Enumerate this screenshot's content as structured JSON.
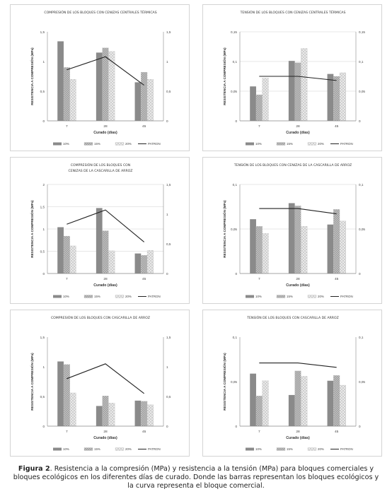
{
  "caption": {
    "label": "Figura 2",
    "text": ". Resistencia a la compresión (MPa) y resistencia a la tensión (MPa) para bloques comerciales y bloques ecológicos en los diferentes días de curado. Donde las barras representan los bloques ecológicos y la curva representa el bloque comercial."
  },
  "chart_data": [
    {
      "type": "bar",
      "title": "COMPRESIÓN DE LOS BLOQUES CON CENIZAS CENTRALES TÉRMICAS",
      "xlabel": "Curado (días)",
      "ylabel": "RESISTENCIA A COMPRESIÓN (MPa)",
      "categories": [
        "7",
        "28",
        "45"
      ],
      "ylim": [
        0,
        1.5
      ],
      "yticks": [
        "0",
        "0,5",
        "1",
        "1,5"
      ],
      "y2ticks": [
        "0",
        "0,5",
        "1",
        "1,5"
      ],
      "grid": false,
      "series": [
        {
          "name": "10%",
          "values": [
            1.34,
            1.15,
            0.65
          ]
        },
        {
          "name": "15%",
          "values": [
            0.9,
            1.23,
            0.82
          ]
        },
        {
          "name": "20%",
          "values": [
            0.7,
            1.17,
            0.7
          ]
        }
      ],
      "line": {
        "name": "PATRON",
        "values": [
          0.86,
          1.08,
          0.6
        ]
      },
      "legend": "bottom"
    },
    {
      "type": "bar",
      "title": "TENSIÓN DE LOS BLOQUES CON CENIZAS CENTRALES TÉRMICAS",
      "xlabel": "Curado (días)",
      "ylabel": "RESISTENCIA A COMPRESIÓN (MPa)",
      "categories": [
        "7",
        "28",
        "45"
      ],
      "ylim": [
        0,
        0.15
      ],
      "yticks": [
        "0",
        "0,05",
        "0,1",
        "0,15"
      ],
      "y2ticks": [
        "0",
        "0,05",
        "0,1",
        "0,15"
      ],
      "grid": true,
      "series": [
        {
          "name": "10%",
          "values": [
            0.058,
            0.101,
            0.079
          ]
        },
        {
          "name": "15%",
          "values": [
            0.044,
            0.098,
            0.075
          ]
        },
        {
          "name": "20%",
          "values": [
            0.072,
            0.122,
            0.081
          ]
        }
      ],
      "line": {
        "name": "PATRON",
        "values": [
          0.075,
          0.075,
          0.068
        ]
      },
      "legend": "bottom"
    },
    {
      "type": "bar",
      "title": "COMPRESIÓN DE LOS BLOQUES CON CENIZAS DE LA CASCARILLA DE ARROZ",
      "xlabel": "Curado (días)",
      "ylabel": "RESISTENCIA A COMPRESIÓN (MPa)",
      "categories": [
        "7",
        "28",
        "45"
      ],
      "ylim": [
        0,
        2
      ],
      "yticks": [
        "0",
        "0,5",
        "1",
        "1,5",
        "2"
      ],
      "y2lim": [
        0,
        1.5
      ],
      "y2ticks": [
        "0",
        "0,5",
        "1",
        "1,5"
      ],
      "grid": true,
      "series": [
        {
          "name": "10%",
          "values": [
            1.04,
            1.47,
            0.45
          ]
        },
        {
          "name": "15%",
          "values": [
            0.84,
            0.96,
            0.41
          ]
        },
        {
          "name": "20%",
          "values": [
            0.62,
            0.51,
            0.52
          ]
        }
      ],
      "line": {
        "name": "PATRON",
        "values": [
          0.83,
          1.07,
          0.53
        ]
      },
      "legend": "bottom"
    },
    {
      "type": "bar",
      "title": "TENSIÓN DE LOS BLOQUES CON CENIZAS DE LA CASCARILLA DE ARROZ",
      "xlabel": "Curado (días)",
      "ylabel": "RESISTENCIA A COMPRESIÓN (MPa)",
      "categories": [
        "7",
        "28",
        "45"
      ],
      "ylim": [
        0,
        0.1
      ],
      "yticks": [
        "0",
        "0,05",
        "0,1"
      ],
      "y2ticks": [
        "0",
        "0,05",
        "0,1"
      ],
      "grid": true,
      "series": [
        {
          "name": "10%",
          "values": [
            0.061,
            0.079,
            0.055
          ]
        },
        {
          "name": "15%",
          "values": [
            0.053,
            0.076,
            0.072
          ]
        },
        {
          "name": "20%",
          "values": [
            0.045,
            0.053,
            0.059
          ]
        }
      ],
      "line": {
        "name": "PATRON",
        "values": [
          0.073,
          0.073,
          0.067
        ]
      },
      "legend": "bottom"
    },
    {
      "type": "bar",
      "title": "COMPRESIÓN DE LOS BLOQUES CON CASCARILLA DE ARROZ",
      "xlabel": "Curado (días)",
      "ylabel": "RESISTENCIA A COMPRESIÓN (MPa)",
      "categories": [
        "7",
        "28",
        "45"
      ],
      "ylim": [
        0,
        1.5
      ],
      "yticks": [
        "0",
        "0,5",
        "1",
        "1,5"
      ],
      "y2ticks": [
        "0",
        "0,5",
        "1",
        "1,5"
      ],
      "grid": false,
      "series": [
        {
          "name": "10%",
          "values": [
            1.09,
            0.34,
            0.43
          ]
        },
        {
          "name": "15%",
          "values": [
            1.04,
            0.51,
            0.42
          ]
        },
        {
          "name": "20%",
          "values": [
            0.56,
            0.39,
            0.36
          ]
        }
      ],
      "line": {
        "name": "PATRON",
        "values": [
          0.8,
          1.05,
          0.55
        ]
      },
      "legend": "bottom"
    },
    {
      "type": "bar",
      "title": "TENSIÓN DE LOS BLOQUES CON CASCARILLA DE ARROZ",
      "xlabel": "Curado (días)",
      "ylabel": "RESISTENCIA A COMPRESIÓN (MPa)",
      "categories": [
        "7",
        "28",
        "45"
      ],
      "ylim": [
        0,
        0.1
      ],
      "yticks": [
        "0",
        "0,05",
        "0,1"
      ],
      "y2ticks": [
        "0",
        "0,05",
        "0,1"
      ],
      "grid": false,
      "series": [
        {
          "name": "10%",
          "values": [
            0.059,
            0.035,
            0.051
          ]
        },
        {
          "name": "15%",
          "values": [
            0.034,
            0.062,
            0.057
          ]
        },
        {
          "name": "20%",
          "values": [
            0.051,
            0.056,
            0.046
          ]
        }
      ],
      "line": {
        "name": "PATRON",
        "values": [
          0.071,
          0.071,
          0.066
        ]
      },
      "legend": "bottom"
    }
  ]
}
